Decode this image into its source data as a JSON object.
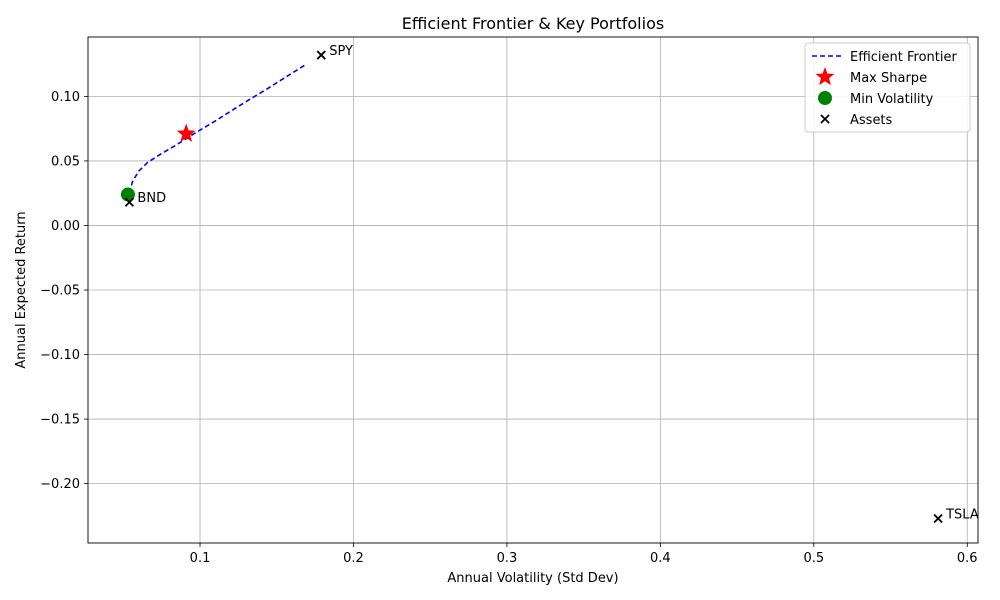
{
  "chart_data": {
    "type": "scatter",
    "title": "Efficient Frontier & Key Portfolios",
    "xlabel": "Annual Volatility (Std Dev)",
    "ylabel": "Annual Expected Return",
    "xlim": [
      0.027,
      0.607
    ],
    "ylim": [
      -0.246,
      0.146
    ],
    "xticks": [
      0.1,
      0.2,
      0.3,
      0.4,
      0.5,
      0.6
    ],
    "xtick_labels": [
      "0.1",
      "0.2",
      "0.3",
      "0.4",
      "0.5",
      "0.6"
    ],
    "yticks": [
      -0.2,
      -0.15,
      -0.1,
      -0.05,
      0.0,
      0.05,
      0.1
    ],
    "ytick_labels": [
      "−0.20",
      "−0.15",
      "−0.10",
      "−0.05",
      "0.00",
      "0.05",
      "0.10"
    ],
    "grid": true,
    "legend_position": "top-right",
    "frontier": {
      "name": "Efficient Frontier",
      "color": "#0000ff",
      "style": "dashed",
      "x": [
        0.054,
        0.056,
        0.06,
        0.066,
        0.074,
        0.084,
        0.096,
        0.11,
        0.126,
        0.144,
        0.168
      ],
      "y": [
        0.025,
        0.034,
        0.042,
        0.049,
        0.055,
        0.062,
        0.071,
        0.081,
        0.093,
        0.106,
        0.124
      ]
    },
    "max_sharpe": {
      "name": "Max Sharpe",
      "x": 0.091,
      "y": 0.071,
      "color": "#ff0000",
      "marker": "star"
    },
    "min_volatility": {
      "name": "Min Volatility",
      "x": 0.053,
      "y": 0.024,
      "color": "#008000",
      "marker": "circle"
    },
    "assets": {
      "name": "Assets",
      "marker": "x",
      "color": "#000000",
      "points": [
        {
          "label": "SPY",
          "x": 0.179,
          "y": 0.132
        },
        {
          "label": "BND",
          "x": 0.054,
          "y": 0.018
        },
        {
          "label": "TSLA",
          "x": 0.581,
          "y": -0.227
        }
      ]
    }
  }
}
